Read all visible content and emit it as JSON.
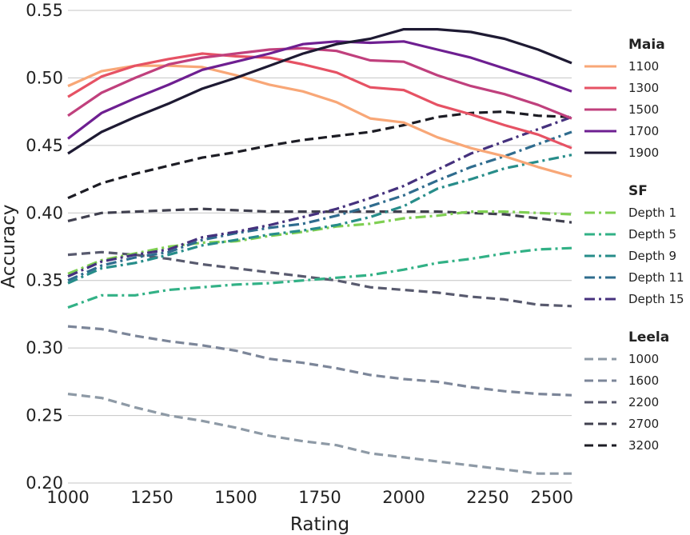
{
  "chart_data": {
    "type": "line",
    "title": "",
    "xlabel": "Rating",
    "ylabel": "Accuracy",
    "xlim": [
      1000,
      2500
    ],
    "ylim": [
      0.2,
      0.55
    ],
    "x_ticks": [
      "1000",
      "1250",
      "1500",
      "1750",
      "2000",
      "2250",
      "2500"
    ],
    "y_ticks": [
      "0.20",
      "0.25",
      "0.30",
      "0.35",
      "0.40",
      "0.45",
      "0.50",
      "0.55"
    ],
    "grid": "horizontal",
    "legend_position": "right",
    "x": [
      1000,
      1100,
      1200,
      1300,
      1400,
      1500,
      1600,
      1700,
      1800,
      1900,
      2000,
      2100,
      2200,
      2300,
      2400,
      2500
    ],
    "groups": [
      {
        "title": "Maia",
        "style": "solid",
        "series": [
          {
            "name": "1100",
            "color": "#f8a777",
            "values": [
              0.494,
              0.505,
              0.509,
              0.509,
              0.508,
              0.502,
              0.495,
              0.49,
              0.482,
              0.47,
              0.467,
              0.456,
              0.448,
              0.442,
              0.434,
              0.427
            ]
          },
          {
            "name": "1300",
            "color": "#e65264",
            "values": [
              0.486,
              0.501,
              0.509,
              0.514,
              0.518,
              0.516,
              0.515,
              0.51,
              0.504,
              0.493,
              0.491,
              0.48,
              0.473,
              0.465,
              0.458,
              0.448
            ]
          },
          {
            "name": "1500",
            "color": "#c0407d",
            "values": [
              0.472,
              0.489,
              0.5,
              0.51,
              0.515,
              0.518,
              0.521,
              0.522,
              0.52,
              0.513,
              0.512,
              0.502,
              0.494,
              0.488,
              0.48,
              0.47
            ]
          },
          {
            "name": "1700",
            "color": "#6e1f91",
            "values": [
              0.455,
              0.474,
              0.485,
              0.495,
              0.506,
              0.512,
              0.518,
              0.525,
              0.527,
              0.526,
              0.527,
              0.521,
              0.515,
              0.507,
              0.499,
              0.49
            ]
          },
          {
            "name": "1900",
            "color": "#1e1a33",
            "values": [
              0.444,
              0.46,
              0.471,
              0.481,
              0.492,
              0.5,
              0.509,
              0.518,
              0.525,
              0.529,
              0.536,
              0.536,
              0.534,
              0.529,
              0.521,
              0.511
            ]
          }
        ]
      },
      {
        "title": "SF",
        "style": "dashdot",
        "series": [
          {
            "name": "Depth 1",
            "color": "#7fcf52",
            "values": [
              0.355,
              0.365,
              0.37,
              0.375,
              0.378,
              0.379,
              0.383,
              0.386,
              0.39,
              0.392,
              0.396,
              0.398,
              0.401,
              0.401,
              0.4,
              0.399
            ]
          },
          {
            "name": "Depth 5",
            "color": "#32b186",
            "values": [
              0.33,
              0.339,
              0.339,
              0.343,
              0.345,
              0.347,
              0.348,
              0.35,
              0.352,
              0.354,
              0.358,
              0.363,
              0.366,
              0.37,
              0.373,
              0.374
            ]
          },
          {
            "name": "Depth 9",
            "color": "#278d8a",
            "values": [
              0.348,
              0.359,
              0.363,
              0.369,
              0.376,
              0.38,
              0.384,
              0.387,
              0.391,
              0.397,
              0.405,
              0.418,
              0.425,
              0.433,
              0.438,
              0.443
            ]
          },
          {
            "name": "Depth 11",
            "color": "#2f6c8e",
            "values": [
              0.35,
              0.361,
              0.367,
              0.371,
              0.38,
              0.385,
              0.389,
              0.392,
              0.398,
              0.405,
              0.413,
              0.424,
              0.434,
              0.442,
              0.451,
              0.46
            ]
          },
          {
            "name": "Depth 15",
            "color": "#45317d",
            "values": [
              0.353,
              0.364,
              0.369,
              0.373,
              0.382,
              0.386,
              0.391,
              0.397,
              0.403,
              0.411,
              0.42,
              0.432,
              0.444,
              0.453,
              0.462,
              0.471
            ]
          }
        ]
      },
      {
        "title": "Leela",
        "style": "dashed",
        "series": [
          {
            "name": "1000",
            "color": "#8e9aa6",
            "values": [
              0.266,
              0.263,
              0.256,
              0.25,
              0.246,
              0.241,
              0.235,
              0.231,
              0.228,
              0.222,
              0.219,
              0.216,
              0.213,
              0.21,
              0.207,
              0.207
            ]
          },
          {
            "name": "1600",
            "color": "#7c8699",
            "values": [
              0.316,
              0.314,
              0.309,
              0.305,
              0.302,
              0.298,
              0.292,
              0.289,
              0.285,
              0.28,
              0.277,
              0.275,
              0.271,
              0.268,
              0.266,
              0.265
            ]
          },
          {
            "name": "2200",
            "color": "#585a6e",
            "values": [
              0.369,
              0.371,
              0.369,
              0.366,
              0.362,
              0.359,
              0.356,
              0.353,
              0.35,
              0.345,
              0.343,
              0.341,
              0.338,
              0.336,
              0.332,
              0.331
            ]
          },
          {
            "name": "2700",
            "color": "#40404f",
            "values": [
              0.394,
              0.4,
              0.401,
              0.402,
              0.403,
              0.402,
              0.401,
              0.401,
              0.401,
              0.401,
              0.401,
              0.401,
              0.4,
              0.399,
              0.396,
              0.393
            ]
          },
          {
            "name": "3200",
            "color": "#1c1c24",
            "values": [
              0.411,
              0.422,
              0.429,
              0.435,
              0.441,
              0.445,
              0.45,
              0.454,
              0.457,
              0.46,
              0.465,
              0.471,
              0.474,
              0.475,
              0.472,
              0.471
            ]
          }
        ]
      }
    ]
  }
}
